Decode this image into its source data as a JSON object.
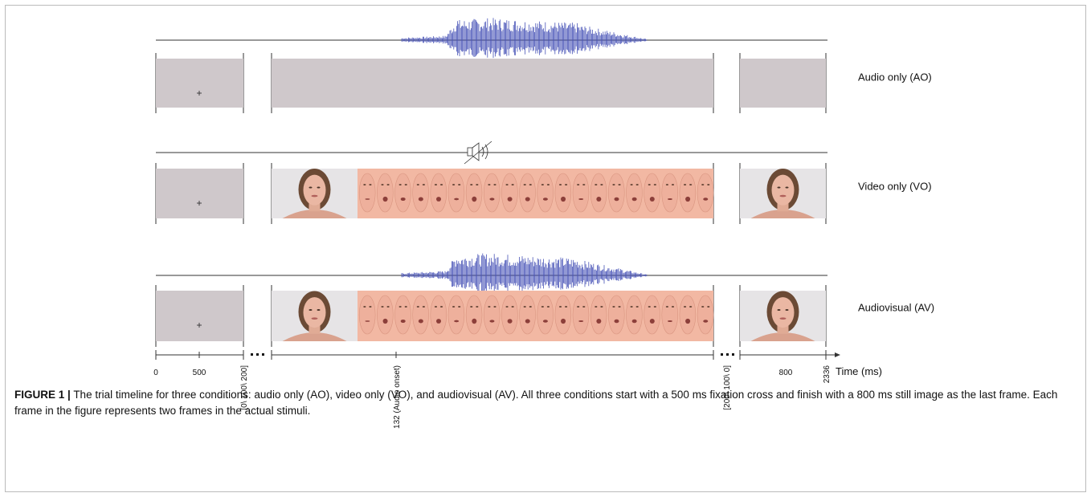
{
  "rows": [
    {
      "label": "Audio only (AO)"
    },
    {
      "label": "Video only (VO)"
    },
    {
      "label": "Audiovisual (AV)"
    }
  ],
  "timeline": {
    "labels": [
      "0",
      "500",
      "[0\\ 100\\ 200]",
      "132 (Audio onset)",
      "[200\\ 100\\ 0]",
      "800",
      "2336"
    ],
    "axis_label": "Time (ms)"
  },
  "caption": {
    "label": "FIGURE 1 |",
    "text": "The trial timeline for three conditions: audio only (AO), video only (VO), and audiovisual (AV). All three conditions start with a 500 ms fixation cross and finish with a 800 ms still image as the last frame. Each frame in the figure represents two frames in the actual stimuli."
  }
}
